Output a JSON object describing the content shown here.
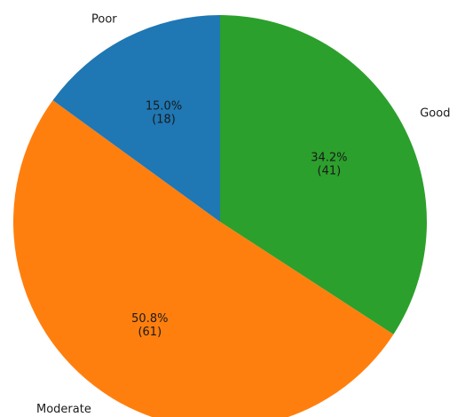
{
  "chart_data": {
    "type": "pie",
    "slices": [
      {
        "label": "Good",
        "value": 41,
        "percent": "34.2%",
        "count_text": "(41)",
        "color": "#2ca02c"
      },
      {
        "label": "Moderate",
        "value": 61,
        "percent": "50.8%",
        "count_text": "(61)",
        "color": "#ff7f0e"
      },
      {
        "label": "Poor",
        "value": 18,
        "percent": "15.0%",
        "count_text": "(18)",
        "color": "#1f77b4"
      }
    ],
    "start_angle_deg": 90,
    "direction": "clockwise"
  }
}
